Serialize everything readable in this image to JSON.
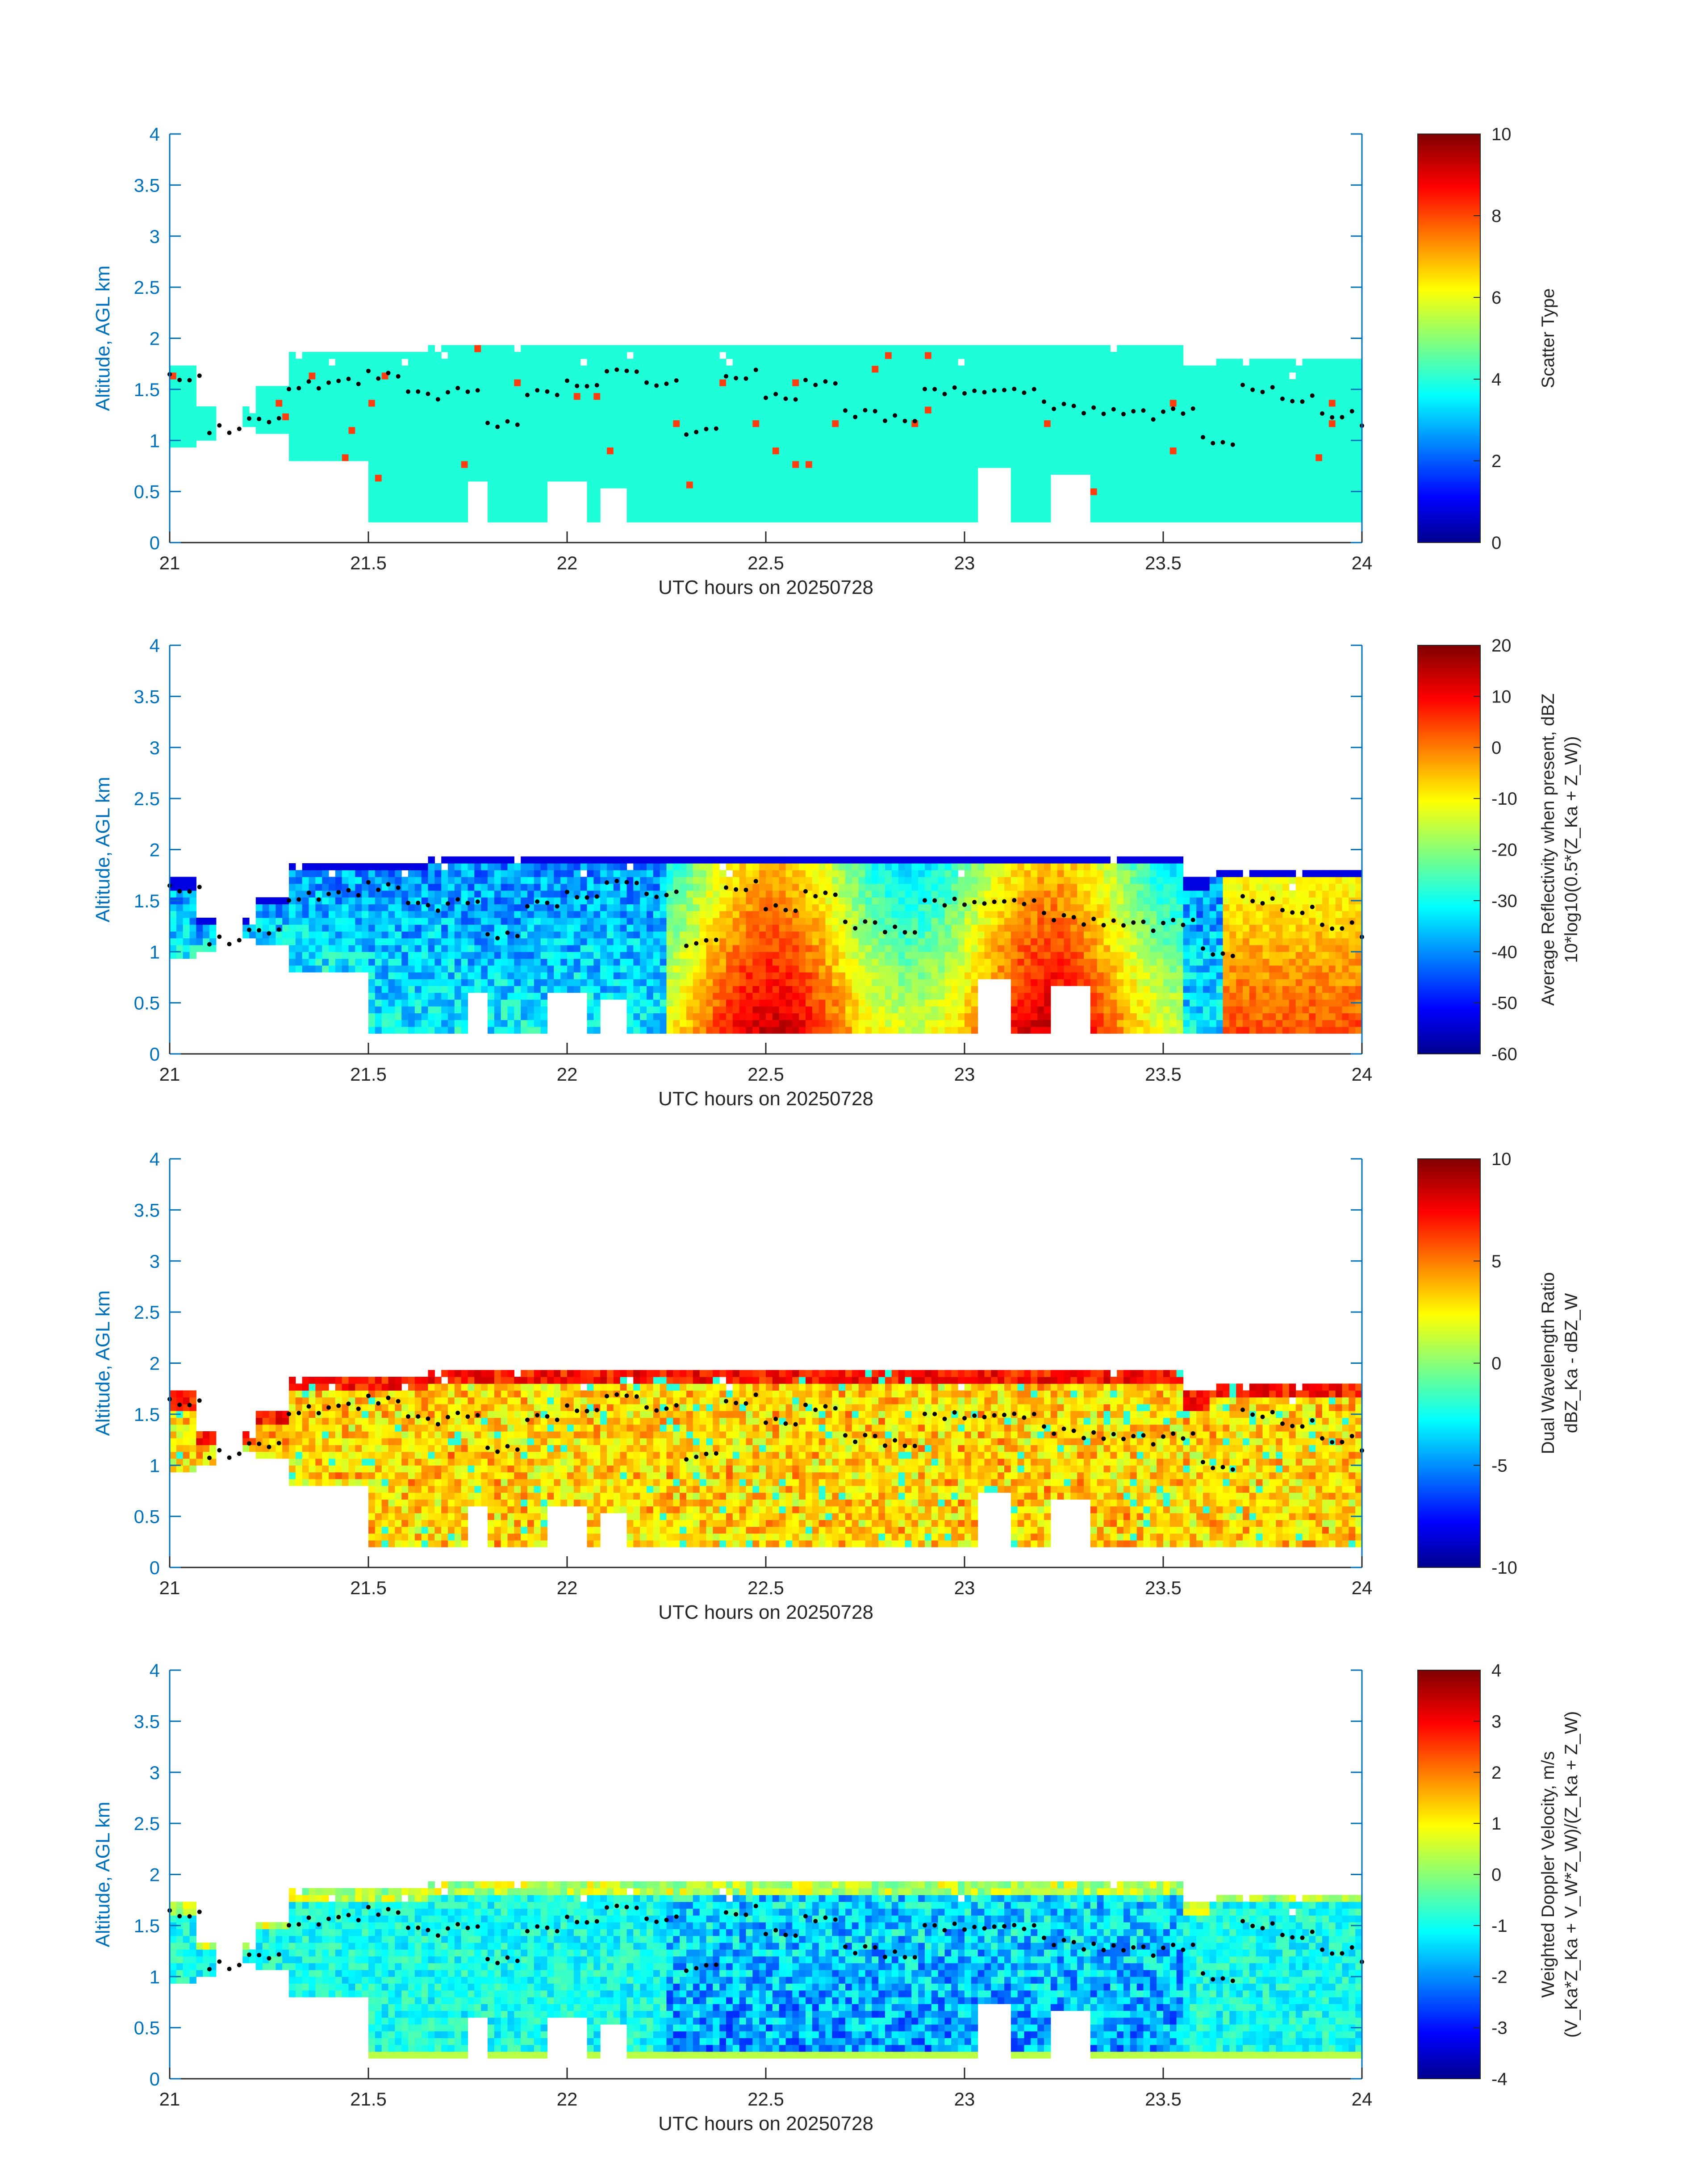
{
  "colors": {
    "axis": "#0072bd",
    "text": "#262626",
    "colorbar_stops": [
      "#00008f",
      "#0000ff",
      "#00ffff",
      "#ffff00",
      "#ff0000",
      "#800000"
    ],
    "scatter_cloud": "#1effd9",
    "scatter_rain": "#ff3d0f",
    "cloud_base_marker": "#000000"
  },
  "chart_data": [
    {
      "type": "heatmap",
      "title": "",
      "xlabel": "UTC hours on 20250728",
      "ylabel": "Altitude, AGL km",
      "xlim": [
        21,
        24
      ],
      "ylim": [
        0,
        4
      ],
      "xticks": [
        "21",
        "21.5",
        "22",
        "22.5",
        "23",
        "23.5",
        "24"
      ],
      "yticks": [
        "0",
        "0.5",
        "1",
        "1.5",
        "2",
        "2.5",
        "3",
        "3.5",
        "4"
      ],
      "colorbar": {
        "label": "Scatter Type",
        "sublabel": "",
        "range": [
          0,
          10
        ],
        "ticks": [
          "0",
          "2",
          "4",
          "6",
          "8",
          "10"
        ]
      },
      "field": "scatter_type",
      "description_values": {
        "cloud": 4,
        "rain": 8
      }
    },
    {
      "type": "heatmap",
      "title": "",
      "xlabel": "UTC hours on 20250728",
      "ylabel": "Altitude, AGL km",
      "xlim": [
        21,
        24
      ],
      "ylim": [
        0,
        4
      ],
      "xticks": [
        "21",
        "21.5",
        "22",
        "22.5",
        "23",
        "23.5",
        "24"
      ],
      "yticks": [
        "0",
        "0.5",
        "1",
        "1.5",
        "2",
        "2.5",
        "3",
        "3.5",
        "4"
      ],
      "colorbar": {
        "label": "Average Reflectivity when present, dBZ",
        "sublabel": "10*log10(0.5*(Z_Ka + Z_W))",
        "range": [
          -60,
          20
        ],
        "ticks": [
          "-60",
          "-50",
          "-40",
          "-30",
          "-20",
          "-10",
          "0",
          "10",
          "20"
        ]
      },
      "field": "reflectivity"
    },
    {
      "type": "heatmap",
      "title": "",
      "xlabel": "UTC hours on 20250728",
      "ylabel": "Altitude, AGL km",
      "xlim": [
        21,
        24
      ],
      "ylim": [
        0,
        4
      ],
      "xticks": [
        "21",
        "21.5",
        "22",
        "22.5",
        "23",
        "23.5",
        "24"
      ],
      "yticks": [
        "0",
        "0.5",
        "1",
        "1.5",
        "2",
        "2.5",
        "3",
        "3.5",
        "4"
      ],
      "colorbar": {
        "label": "Dual Wavelength Ratio",
        "sublabel": "dBZ_Ka - dBZ_W",
        "range": [
          -10,
          10
        ],
        "ticks": [
          "-10",
          "-5",
          "0",
          "5",
          "10"
        ]
      },
      "field": "dwr"
    },
    {
      "type": "heatmap",
      "title": "",
      "xlabel": "UTC hours on 20250728",
      "ylabel": "Altitude, AGL km",
      "xlim": [
        21,
        24
      ],
      "ylim": [
        0,
        4
      ],
      "xticks": [
        "21",
        "21.5",
        "22",
        "22.5",
        "23",
        "23.5",
        "24"
      ],
      "yticks": [
        "0",
        "0.5",
        "1",
        "1.5",
        "2",
        "2.5",
        "3",
        "3.5",
        "4"
      ],
      "colorbar": {
        "label": "Weighted Doppler Velocity, m/s",
        "sublabel": "(V_Ka*Z_Ka + V_W*Z_W)/(Z_Ka + Z_W)",
        "range": [
          -4,
          4
        ],
        "ticks": [
          "-4",
          "-3",
          "-2",
          "-1",
          "0",
          "1",
          "2",
          "3",
          "4"
        ]
      },
      "field": "velocity"
    }
  ],
  "cloud_extent": {
    "description": "echo top height (km) by time segment",
    "segments": [
      {
        "t0": 21.0,
        "t1": 21.07,
        "top": 1.7,
        "bottom": 0.95
      },
      {
        "t0": 21.07,
        "t1": 21.12,
        "top": 1.35,
        "bottom": 1.0
      },
      {
        "t0": 21.18,
        "t1": 21.22,
        "top": 1.35,
        "bottom": 1.15
      },
      {
        "t0": 21.22,
        "t1": 21.3,
        "top": 1.55,
        "bottom": 1.1
      },
      {
        "t0": 21.3,
        "t1": 21.5,
        "top": 1.85,
        "bottom": 0.8
      },
      {
        "t0": 21.5,
        "t1": 21.65,
        "top": 1.85,
        "bottom": 0.2
      },
      {
        "t0": 21.65,
        "t1": 22.2,
        "top": 1.92,
        "bottom": 0.2
      },
      {
        "t0": 22.2,
        "t1": 23.55,
        "top": 1.92,
        "bottom": 0.2
      },
      {
        "t0": 23.55,
        "t1": 23.62,
        "top": 1.7,
        "bottom": 0.2
      },
      {
        "t0": 23.62,
        "t1": 24.0,
        "top": 1.8,
        "bottom": 0.2
      }
    ],
    "gaps": [
      {
        "t0": 23.03,
        "t1": 23.12,
        "top": 0.75
      },
      {
        "t0": 23.22,
        "t1": 23.32,
        "top": 0.7
      },
      {
        "t0": 21.75,
        "t1": 21.8,
        "top": 0.6
      },
      {
        "t0": 21.95,
        "t1": 22.05,
        "top": 0.6
      },
      {
        "t0": 22.08,
        "t1": 22.15,
        "top": 0.55
      }
    ]
  },
  "cloud_base": {
    "t": [
      21.0,
      21.1,
      21.2,
      21.3,
      21.4,
      21.5,
      21.6,
      21.7,
      21.8,
      21.9,
      22.0,
      22.1,
      22.2,
      22.3,
      22.4,
      22.5,
      22.6,
      22.7,
      22.8,
      22.9,
      23.0,
      23.1,
      23.2,
      23.3,
      23.4,
      23.5,
      23.6,
      23.7,
      23.8,
      23.9,
      24.0
    ],
    "h": [
      1.6,
      1.1,
      1.2,
      1.55,
      1.6,
      1.65,
      1.45,
      1.5,
      1.15,
      1.45,
      1.55,
      1.65,
      1.55,
      1.1,
      1.65,
      1.45,
      1.55,
      1.25,
      1.2,
      1.5,
      1.5,
      1.5,
      1.35,
      1.3,
      1.25,
      1.3,
      1.0,
      1.5,
      1.4,
      1.25,
      1.1
    ]
  }
}
